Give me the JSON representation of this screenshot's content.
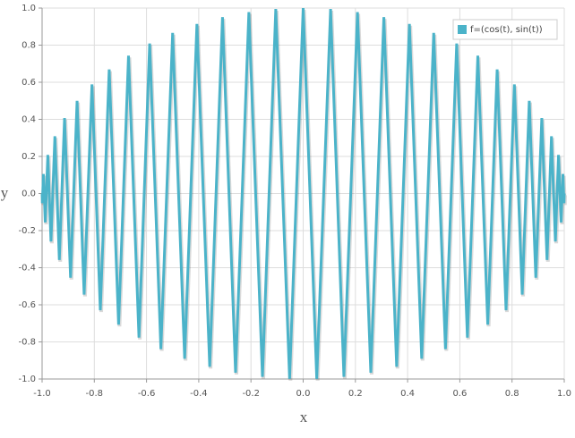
{
  "chart_data": {
    "type": "line",
    "x_label": "x",
    "y_label": "y",
    "xlim": [
      -1,
      1
    ],
    "ylim": [
      -1,
      1
    ],
    "xticks": [
      {
        "value": -1,
        "label": "-1.0"
      },
      -0.8,
      -0.6,
      -0.4,
      -0.2,
      {
        "value": 0,
        "label": "0.0"
      },
      0.2,
      0.4,
      0.6,
      0.8,
      {
        "value": 1,
        "label": "1.0"
      }
    ],
    "yticks": [
      {
        "value": -1,
        "label": "-1.0"
      },
      -0.8,
      -0.6,
      -0.4,
      -0.2,
      {
        "value": 0,
        "label": "0.0"
      },
      0.2,
      0.4,
      0.6,
      0.8,
      {
        "value": 1,
        "label": "1.0"
      }
    ],
    "grid": true,
    "legend": "top-right",
    "series": [
      {
        "name": "f=(cos(t), sin(t))",
        "color": "#4bb3c9",
        "x": [
          -1,
          -0.999,
          -0.995,
          -0.988,
          -0.978,
          -0.966,
          -0.951,
          -0.934,
          -0.914,
          -0.891,
          -0.866,
          -0.839,
          -0.809,
          -0.777,
          -0.743,
          -0.707,
          -0.669,
          -0.629,
          -0.588,
          -0.545,
          -0.5,
          -0.454,
          -0.407,
          -0.358,
          -0.309,
          -0.259,
          -0.208,
          -0.156,
          -0.105,
          -0.052,
          0,
          0.052,
          0.105,
          0.156,
          0.208,
          0.259,
          0.309,
          0.358,
          0.407,
          0.454,
          0.5,
          0.545,
          0.588,
          0.629,
          0.669,
          0.707,
          0.743,
          0.777,
          0.809,
          0.839,
          0.866,
          0.891,
          0.914,
          0.934,
          0.951,
          0.966,
          0.978,
          0.988,
          0.995,
          0.999,
          1
        ],
        "values": [
          0,
          -0.052,
          0.105,
          -0.156,
          0.208,
          -0.259,
          0.309,
          -0.358,
          0.407,
          -0.454,
          0.5,
          -0.545,
          0.588,
          -0.629,
          0.669,
          -0.707,
          0.743,
          -0.777,
          0.809,
          -0.839,
          0.866,
          -0.891,
          0.914,
          -0.934,
          0.951,
          -0.966,
          0.978,
          -0.988,
          0.995,
          -0.999,
          1,
          -0.999,
          0.995,
          -0.988,
          0.978,
          -0.966,
          0.951,
          -0.934,
          0.914,
          -0.891,
          0.866,
          -0.839,
          0.809,
          -0.777,
          0.743,
          -0.707,
          0.669,
          -0.629,
          0.588,
          -0.545,
          0.5,
          -0.454,
          0.407,
          -0.358,
          0.309,
          -0.259,
          0.208,
          -0.156,
          0.105,
          -0.052,
          0
        ]
      }
    ]
  }
}
